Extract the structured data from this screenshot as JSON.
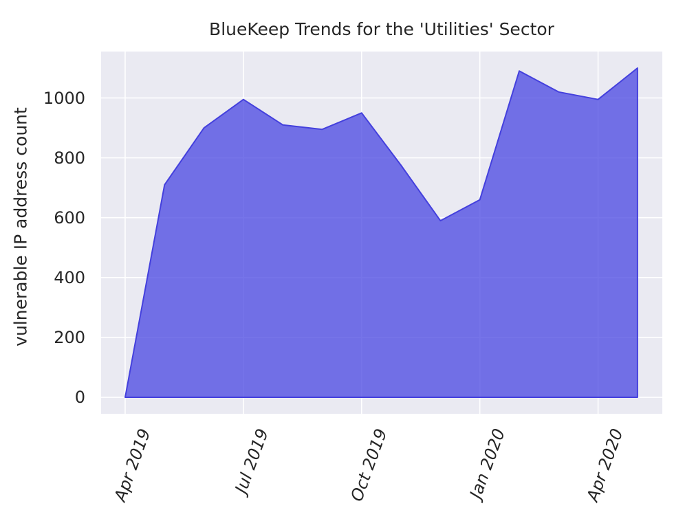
{
  "chart_data": {
    "type": "area",
    "title": "BlueKeep Trends for the 'Utilities' Sector",
    "xlabel": "",
    "ylabel": "vulnerable IP address count",
    "x": [
      "Apr 2019",
      "May 2019",
      "Jun 2019",
      "Jul 2019",
      "Aug 2019",
      "Sep 2019",
      "Oct 2019",
      "Nov 2019",
      "Dec 2019",
      "Jan 2020",
      "Feb 2020",
      "Mar 2020",
      "Apr 2020",
      "May 2020"
    ],
    "values": [
      0,
      710,
      900,
      995,
      910,
      895,
      950,
      775,
      590,
      660,
      1090,
      1020,
      995,
      1100
    ],
    "series_name": "vulnerable IP address count",
    "xtick_labels": [
      "Apr 2019",
      "Jul 2019",
      "Oct 2019",
      "Jan 2020",
      "Apr 2020"
    ],
    "xtick_indices": [
      0,
      3,
      6,
      9,
      12
    ],
    "ytick_values": [
      0,
      200,
      400,
      600,
      800,
      1000
    ],
    "ylim": [
      -55,
      1155
    ],
    "xlim": [
      -0.61,
      13.63
    ],
    "grid": true,
    "legend_visible": false,
    "colors": {
      "fill": "rgba(72, 70, 226, 0.75)",
      "line": "#4440dd",
      "plot_bg": "#eaeaf2",
      "grid": "#ffffff",
      "text": "#262626"
    }
  }
}
